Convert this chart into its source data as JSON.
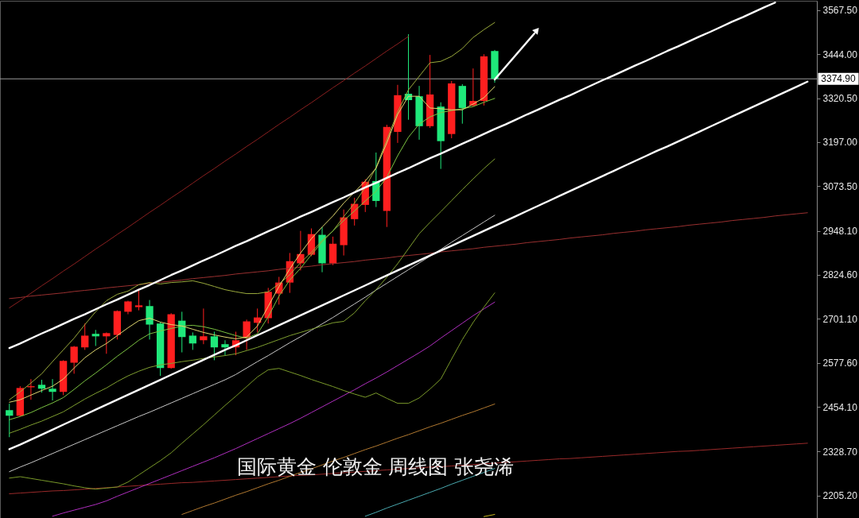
{
  "chart_data": {
    "type": "candlestick",
    "categories": [
      null,
      null,
      null,
      null,
      null,
      null,
      null,
      null,
      null,
      null,
      null,
      null,
      null,
      null,
      null,
      null,
      null,
      null,
      null,
      null,
      null,
      null,
      null,
      null,
      null,
      null,
      null,
      null,
      null,
      null,
      null,
      null,
      null,
      null,
      null,
      null,
      null,
      null,
      null,
      null,
      null,
      null,
      null,
      null,
      null,
      null,
      null,
      null,
      null,
      null,
      null,
      null,
      null,
      null,
      null,
      null,
      null,
      null,
      null,
      null,
      null,
      null,
      null,
      null,
      null,
      null,
      null,
      null,
      null,
      null,
      null,
      null,
      null,
      null,
      null
    ],
    "ohlc": [
      [
        2445,
        2463,
        2369,
        2429
      ],
      [
        2429,
        2512,
        2427,
        2507
      ],
      [
        2509,
        2532,
        2474,
        2512
      ],
      [
        2516,
        2530,
        2494,
        2505
      ],
      [
        2505,
        2532,
        2472,
        2496
      ],
      [
        2496,
        2585,
        2487,
        2583
      ],
      [
        2578,
        2625,
        2547,
        2623
      ],
      [
        2621,
        2688,
        2614,
        2654
      ],
      [
        2659,
        2670,
        2625,
        2652
      ],
      [
        2652,
        2663,
        2603,
        2661
      ],
      [
        2656,
        2725,
        2643,
        2723
      ],
      [
        2721,
        2752,
        2714,
        2750
      ],
      [
        2734,
        2786,
        2725,
        2739
      ],
      [
        2737,
        2754,
        2643,
        2685
      ],
      [
        2688,
        2692,
        2541,
        2563
      ],
      [
        2563,
        2717,
        2561,
        2714
      ],
      [
        2696,
        2721,
        2607,
        2650
      ],
      [
        2654,
        2663,
        2614,
        2632
      ],
      [
        2641,
        2730,
        2630,
        2652
      ],
      [
        2652,
        2665,
        2585,
        2621
      ],
      [
        2630,
        2641,
        2599,
        2621
      ],
      [
        2621,
        2665,
        2599,
        2641
      ],
      [
        2647,
        2699,
        2614,
        2694
      ],
      [
        2690,
        2730,
        2663,
        2705
      ],
      [
        2703,
        2788,
        2688,
        2777
      ],
      [
        2772,
        2819,
        2741,
        2803
      ],
      [
        2803,
        2886,
        2774,
        2863
      ],
      [
        2857,
        2948,
        2837,
        2883
      ],
      [
        2881,
        2955,
        2877,
        2939
      ],
      [
        2937,
        2959,
        2832,
        2857
      ],
      [
        2857,
        2932,
        2852,
        2912
      ],
      [
        2908,
        3008,
        2879,
        2986
      ],
      [
        2981,
        3041,
        2963,
        3024
      ],
      [
        3021,
        3093,
        3001,
        3086
      ],
      [
        3088,
        3168,
        3015,
        3032
      ],
      [
        3004,
        3246,
        2959,
        3240
      ],
      [
        3226,
        3358,
        3195,
        3329
      ],
      [
        3333,
        3500,
        3260,
        3315
      ],
      [
        3326,
        3355,
        3204,
        3242
      ],
      [
        3242,
        3442,
        3237,
        3331
      ],
      [
        3297,
        3309,
        3122,
        3200
      ],
      [
        3220,
        3369,
        3208,
        3362
      ],
      [
        3355,
        3360,
        3249,
        3293
      ],
      [
        3300,
        3404,
        3297,
        3313
      ],
      [
        3313,
        3444,
        3300,
        3438
      ],
      [
        3453,
        3456,
        3364,
        3375
      ],
      null,
      null,
      null,
      null,
      null,
      null,
      null,
      null,
      null,
      null,
      null,
      null,
      null,
      null,
      null,
      null,
      null,
      null,
      null,
      null,
      null,
      null,
      null,
      null,
      null,
      null,
      null,
      null,
      null
    ],
    "colors": [
      "#1fe87a",
      "#ff1f1f",
      "#ff1f1f",
      "#1fe87a",
      "#1fe87a",
      "#ff1f1f",
      "#ff1f1f",
      "#ff1f1f",
      "#1fe87a",
      "#ff1f1f",
      "#ff1f1f",
      "#ff1f1f",
      "#ff1f1f",
      "#1fe87a",
      "#1fe87a",
      "#ff1f1f",
      "#1fe87a",
      "#1fe87a",
      "#ff1f1f",
      "#1fe87a",
      "#1fe87a",
      "#ff1f1f",
      "#ff1f1f",
      "#ff1f1f",
      "#ff1f1f",
      "#ff1f1f",
      "#ff1f1f",
      "#ff1f1f",
      "#ff1f1f",
      "#1fe87a",
      "#ff1f1f",
      "#ff1f1f",
      "#ff1f1f",
      "#ff1f1f",
      "#1fe87a",
      "#ff1f1f",
      "#ff1f1f",
      "#1fe87a",
      "#1fe87a",
      "#ff1f1f",
      "#1fe87a",
      "#ff1f1f",
      "#1fe87a",
      "#ff1f1f",
      "#ff1f1f",
      "#1fe87a",
      null,
      null,
      null,
      null,
      null,
      null,
      null,
      null,
      null,
      null,
      null,
      null,
      null,
      null,
      null,
      null,
      null,
      null,
      null,
      null,
      null,
      null,
      null,
      null,
      null,
      null,
      null,
      null,
      null
    ],
    "series": [
      {
        "type": "line",
        "color": "#9a2a2a",
        "values": [
          2210,
          2212,
          2214,
          2216,
          2218,
          2219,
          2221,
          2223,
          2225,
          2227,
          2229,
          2231,
          2233,
          2235,
          2237,
          2239,
          2241,
          2242,
          2244,
          2246,
          2248,
          2250,
          2252,
          2254,
          2256,
          2258,
          2260,
          2262,
          2263,
          2265,
          2267,
          2269,
          2271,
          2273,
          2275,
          2277,
          2279,
          2281,
          2283,
          2285,
          2286,
          2288,
          2290,
          2292,
          2294,
          2296,
          2298,
          2300,
          2302,
          2304,
          2306,
          2308,
          2309,
          2311,
          2313,
          2315,
          2317,
          2319,
          2321,
          2323,
          2325,
          2327,
          2329,
          2330,
          2332,
          2334,
          2336,
          2338,
          2340,
          2342,
          2344,
          2346,
          2348,
          2350,
          2352
        ]
      },
      {
        "type": "line",
        "color": "#9a3030",
        "values": [
          2758,
          2761,
          2765,
          2768,
          2771,
          2774,
          2778,
          2781,
          2784,
          2788,
          2791,
          2794,
          2797,
          2801,
          2804,
          2807,
          2810,
          2814,
          2817,
          2820,
          2823,
          2827,
          2830,
          2833,
          2836,
          2840,
          2843,
          2846,
          2849,
          2853,
          2856,
          2859,
          2862,
          2866,
          2869,
          2872,
          2876,
          2879,
          2882,
          2885,
          2889,
          2892,
          2895,
          2898,
          2902,
          2905,
          2908,
          2911,
          2915,
          2918,
          2921,
          2924,
          2928,
          2931,
          2934,
          2937,
          2941,
          2944,
          2947,
          2951,
          2954,
          2957,
          2960,
          2964,
          2967,
          2970,
          2973,
          2977,
          2980,
          2983,
          2986,
          2990,
          2993,
          2996,
          2999
        ]
      },
      {
        "type": "line",
        "color": "#8b2020",
        "values": [
          2732,
          2752,
          2773,
          2794,
          2814,
          2835,
          2855,
          2876,
          2897,
          2917,
          2938,
          2958,
          2979,
          3000,
          3020,
          3041,
          3061,
          3082,
          3103,
          3123,
          3144,
          3164,
          3185,
          3205,
          3226,
          3247,
          3267,
          3288,
          3308,
          3329,
          3350,
          3370,
          3391,
          3411,
          3432,
          3453,
          3473,
          3494,
          null,
          null,
          null,
          null,
          null,
          null,
          null,
          null,
          null,
          null,
          null,
          null,
          null,
          null,
          null,
          null,
          null,
          null,
          null,
          null,
          null,
          null,
          null,
          null,
          null,
          null,
          null,
          null,
          null,
          null,
          null,
          null,
          null,
          null,
          null,
          null,
          null
        ]
      },
      {
        "type": "line",
        "color": "#c8b820",
        "values": [
          null,
          null,
          null,
          null,
          null,
          null,
          null,
          null,
          null,
          null,
          null,
          null,
          null,
          null,
          null,
          null,
          null,
          null,
          null,
          null,
          null,
          null,
          null,
          null,
          null,
          null,
          null,
          null,
          null,
          null,
          null,
          null,
          null,
          null,
          null,
          null,
          null,
          null,
          null,
          null,
          null,
          null,
          null,
          null,
          2146,
          2152,
          null,
          null,
          null,
          null,
          null,
          null,
          null,
          null,
          null,
          null,
          null,
          null,
          null,
          null,
          null,
          null,
          null,
          null,
          null,
          null,
          null,
          null,
          null,
          null,
          null,
          null,
          null,
          null,
          null
        ]
      },
      {
        "type": "line",
        "color": "#4aaab0",
        "values": [
          null,
          null,
          null,
          null,
          null,
          null,
          null,
          null,
          null,
          null,
          null,
          null,
          null,
          null,
          null,
          null,
          null,
          null,
          null,
          null,
          null,
          null,
          null,
          null,
          null,
          null,
          null,
          null,
          null,
          null,
          null,
          null,
          null,
          2147,
          2158,
          2170,
          2181,
          2192,
          2203,
          2214,
          2225,
          2237,
          2248,
          2259,
          2270,
          2281,
          null,
          null,
          null,
          null,
          null,
          null,
          null,
          null,
          null,
          null,
          null,
          null,
          null,
          null,
          null,
          null,
          null,
          null,
          null,
          null,
          null,
          null,
          null,
          null,
          null,
          null,
          null,
          null,
          null
        ]
      },
      {
        "type": "line",
        "color": "#b07830",
        "values": [
          null,
          null,
          null,
          null,
          null,
          null,
          null,
          null,
          null,
          null,
          null,
          null,
          null,
          null,
          null,
          null,
          2152,
          2163,
          2174,
          2184,
          2195,
          2206,
          2216,
          2227,
          2238,
          2248,
          2259,
          2270,
          2280,
          2291,
          2302,
          2312,
          2323,
          2334,
          2344,
          2355,
          2366,
          2376,
          2387,
          2398,
          2408,
          2419,
          2430,
          2440,
          2451,
          2462,
          null,
          null,
          null,
          null,
          null,
          null,
          null,
          null,
          null,
          null,
          null,
          null,
          null,
          null,
          null,
          null,
          null,
          null,
          null,
          null,
          null,
          null,
          null,
          null,
          null,
          null,
          null,
          null,
          null
        ]
      },
      {
        "type": "line",
        "color": "#b02fc0",
        "values": [
          null,
          null,
          null,
          null,
          2147,
          2156,
          2164,
          2172,
          2180,
          2190,
          2203,
          2215,
          2227,
          2239,
          2251,
          2263,
          2275,
          2287,
          2299,
          2311,
          2324,
          2337,
          2351,
          2365,
          2379,
          2393,
          2407,
          2422,
          2438,
          2454,
          2470,
          2486,
          2502,
          2519,
          2535,
          2552,
          2570,
          2588,
          2606,
          2625,
          2647,
          2668,
          2689,
          2710,
          2729,
          2748,
          null,
          null,
          null,
          null,
          null,
          null,
          null,
          null,
          null,
          null,
          null,
          null,
          null,
          null,
          null,
          null,
          null,
          null,
          null,
          null,
          null,
          null,
          null,
          null,
          null,
          null,
          null,
          null,
          null
        ]
      },
      {
        "type": "line",
        "color": "#7a9a2a",
        "values": [
          2254,
          2258,
          2253,
          2248,
          2243,
          2238,
          2232,
          2227,
          2223,
          2226,
          2229,
          2243,
          2263,
          2283,
          2303,
          2325,
          2352,
          2378,
          2404,
          2431,
          2458,
          2484,
          2511,
          2538,
          2558,
          2562,
          2552,
          2542,
          2531,
          2521,
          2511,
          2500,
          2490,
          2481,
          2493,
          2478,
          2464,
          2464,
          2479,
          2504,
          2532,
          2588,
          2643,
          2691,
          2734,
          2774,
          null,
          null,
          null,
          null,
          null,
          null,
          null,
          null,
          null,
          null,
          null,
          null,
          null,
          null,
          null,
          null,
          null,
          null,
          null,
          null,
          null,
          null,
          null,
          null,
          null,
          null,
          null,
          null,
          null
        ]
      },
      {
        "type": "line",
        "color": "#c8c8c8",
        "values": [
          2272,
          2285,
          2297,
          2310,
          2323,
          2336,
          2349,
          2362,
          2375,
          2388,
          2401,
          2414,
          2427,
          2439,
          2452,
          2465,
          2478,
          2491,
          2504,
          2517,
          2530,
          2545,
          2563,
          2581,
          2598,
          2616,
          2634,
          2651,
          2669,
          2687,
          2705,
          2724,
          2743,
          2762,
          2782,
          2801,
          2820,
          2839,
          2858,
          2877,
          2896,
          2916,
          2935,
          2954,
          2973,
          2992,
          null,
          null,
          null,
          null,
          null,
          null,
          null,
          null,
          null,
          null,
          null,
          null,
          null,
          null,
          null,
          null,
          null,
          null,
          null,
          null,
          null,
          null,
          null,
          null,
          null,
          null,
          null,
          null,
          null
        ]
      },
      {
        "type": "line",
        "color": "#7f9f30",
        "values": [
          2380,
          2391,
          2403,
          2414,
          2427,
          2440,
          2458,
          2476,
          2492,
          2507,
          2525,
          2541,
          2554,
          2565,
          2572,
          2576,
          2581,
          2585,
          2590,
          2594,
          2598,
          2603,
          2612,
          2621,
          2632,
          2643,
          2654,
          2663,
          2672,
          2681,
          2690,
          2694,
          2718,
          2752,
          2783,
          2818,
          2856,
          2898,
          2940,
          2972,
          3002,
          3033,
          3064,
          3094,
          3123,
          3150,
          null,
          null,
          null,
          null,
          null,
          null,
          null,
          null,
          null,
          null,
          null,
          null,
          null,
          null,
          null,
          null,
          null,
          null,
          null,
          null,
          null,
          null,
          null,
          null,
          null,
          null,
          null,
          null,
          null
        ]
      },
      {
        "type": "line",
        "color": "#9aaa3c",
        "values": [
          2474,
          2496,
          2521,
          2547,
          2581,
          2614,
          2647,
          2685,
          2721,
          2752,
          2770,
          2779,
          2797,
          2803,
          2799,
          2803,
          2805,
          2808,
          2801,
          2792,
          2783,
          2777,
          2772,
          2772,
          2777,
          2799,
          2825,
          2859,
          2888,
          2921,
          2948,
          2988,
          3026,
          3070,
          3126,
          3204,
          3282,
          3344,
          3382,
          3420,
          3424,
          3438,
          3460,
          3491,
          3513,
          3533,
          null,
          null,
          null,
          null,
          null,
          null,
          null,
          null,
          null,
          null,
          null,
          null,
          null,
          null,
          null,
          null,
          null,
          null,
          null,
          null,
          null,
          null,
          null,
          null,
          null,
          null,
          null,
          null,
          null
        ]
      },
      {
        "type": "line",
        "color": "#7cc442",
        "values": [
          2418,
          2427,
          2438,
          2452,
          2465,
          2480,
          2503,
          2527,
          2549,
          2572,
          2596,
          2618,
          2641,
          2659,
          2667,
          2674,
          2681,
          2683,
          2679,
          2672,
          2663,
          2654,
          2647,
          2659,
          2707,
          2765,
          2810,
          2843,
          2881,
          2917,
          2948,
          2977,
          3004,
          3032,
          3059,
          3099,
          3159,
          3211,
          3248,
          3268,
          3280,
          3286,
          3291,
          3297,
          3309,
          3320,
          null,
          null,
          null,
          null,
          null,
          null,
          null,
          null,
          null,
          null,
          null,
          null,
          null,
          null,
          null,
          null,
          null,
          null,
          null,
          null,
          null,
          null,
          null,
          null,
          null,
          null,
          null,
          null,
          null
        ]
      },
      {
        "type": "line",
        "color": "#e0d870",
        "values": [
          2467,
          2474,
          2487,
          2500,
          2512,
          2532,
          2563,
          2592,
          2614,
          2632,
          2654,
          2676,
          2696,
          2703,
          2692,
          2685,
          2681,
          2672,
          2663,
          2656,
          2650,
          2645,
          2650,
          2681,
          2736,
          2792,
          2841,
          2886,
          2926,
          2959,
          2990,
          3026,
          3057,
          3088,
          3124,
          3195,
          3275,
          3326,
          3326,
          3293,
          3291,
          3288,
          3288,
          3304,
          3322,
          3353,
          null,
          null,
          null,
          null,
          null,
          null,
          null,
          null,
          null,
          null,
          null,
          null,
          null,
          null,
          null,
          null,
          null,
          null,
          null,
          null,
          null,
          null,
          null,
          null,
          null,
          null,
          null,
          null,
          null
        ]
      },
      {
        "type": "line",
        "color": "#ffffff",
        "values": [
          2335,
          2348,
          2362,
          2376,
          2390,
          2404,
          2418,
          2432,
          2446,
          2460,
          2474,
          2488,
          2502,
          2516,
          2530,
          2544,
          2558,
          2572,
          2586,
          2600,
          2614,
          2627,
          2641,
          2655,
          2669,
          2683,
          2697,
          2711,
          2725,
          2739,
          2753,
          2767,
          2781,
          2795,
          2809,
          2823,
          2837,
          2851,
          2865,
          2879,
          2893,
          2906,
          2920,
          2934,
          2948,
          2962,
          2976,
          2990,
          3004,
          3018,
          3032,
          3046,
          3060,
          3074,
          3088,
          3102,
          3116,
          3130,
          3144,
          3158,
          3172,
          3185,
          3199,
          3213,
          3227,
          3241,
          3255,
          3269,
          3283,
          3297,
          3311,
          3325,
          3339,
          3353,
          3367
        ]
      },
      {
        "type": "line",
        "color": "#ffffff",
        "values": [
          2619,
          2632,
          2646,
          2660,
          2673,
          2687,
          2701,
          2714,
          2728,
          2742,
          2755,
          2769,
          2783,
          2796,
          2810,
          2824,
          2837,
          2851,
          2865,
          2878,
          2892,
          2906,
          2919,
          2933,
          2947,
          2960,
          2974,
          2988,
          3001,
          3015,
          3029,
          3042,
          3056,
          3070,
          3083,
          3097,
          3111,
          3124,
          3138,
          3152,
          3165,
          3179,
          3193,
          3206,
          3220,
          3234,
          3247,
          3261,
          3275,
          3288,
          3302,
          3316,
          3329,
          3343,
          3357,
          3371,
          3384,
          3398,
          3412,
          3425,
          3439,
          3453,
          3466,
          3480,
          3494,
          3507,
          3521,
          3535,
          3548,
          3562,
          3576,
          3589,
          null,
          null,
          null
        ]
      }
    ],
    "ylim": [
      2142,
      3594
    ],
    "yticks": [
      {
        "value": 2205.2,
        "label": "2205.20"
      },
      {
        "value": 2328.7,
        "label": "2328.70"
      },
      {
        "value": 2454.1,
        "label": "2454.10"
      },
      {
        "value": 2577.6,
        "label": "2577.60"
      },
      {
        "value": 2701.1,
        "label": "2701.10"
      },
      {
        "value": 2824.6,
        "label": "2824.60"
      },
      {
        "value": 2948.1,
        "label": "2948.10"
      },
      {
        "value": 3073.5,
        "label": "3073.50"
      },
      {
        "value": 3197,
        "label": "3197.00"
      },
      {
        "value": 3320.5,
        "label": "3320.50"
      },
      {
        "value": 3444,
        "label": "3444.00"
      },
      {
        "value": 3567.5,
        "label": "3567.50"
      }
    ],
    "ref_lines": [
      {
        "axis": "y",
        "value": 3374.9,
        "label": "3374.90",
        "color": "#9a9a9a"
      }
    ],
    "annotations": [
      "国际黄金 伦敦金 周线图 张尧浠"
    ],
    "tick_labels": "y"
  }
}
